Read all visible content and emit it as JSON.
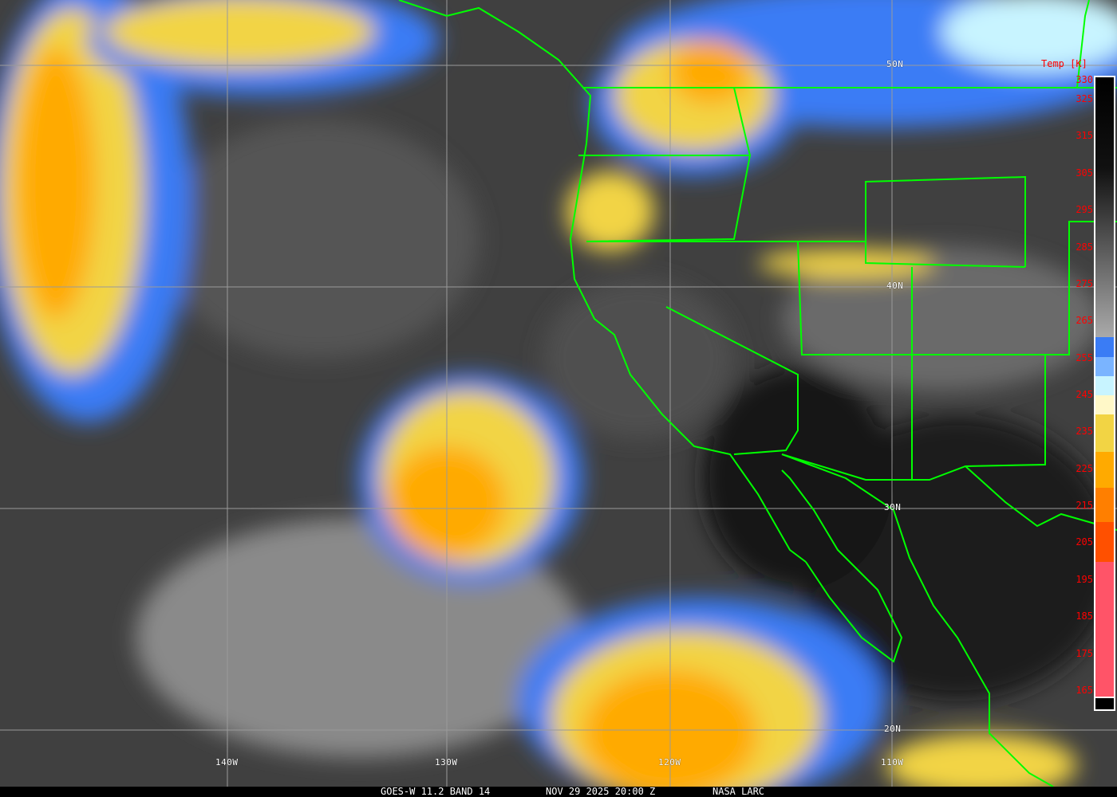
{
  "caption": {
    "satellite": "GOES-W 11.2 BAND 14",
    "datetime": "NOV 29 2025 20:00 Z",
    "source": "NASA LARC"
  },
  "grid": {
    "lat_labels": [
      "50N",
      "40N",
      "30N",
      "20N"
    ],
    "lon_labels": [
      "140W",
      "130W",
      "120W",
      "110W"
    ]
  },
  "colorbar": {
    "title": "Temp [K]",
    "ticks": [
      "330",
      "325",
      "315",
      "305",
      "295",
      "285",
      "275",
      "265",
      "255",
      "245",
      "235",
      "225",
      "215",
      "205",
      "195",
      "185",
      "175",
      "165"
    ],
    "colors": {
      "cold_blue": "#3a7cf5",
      "light_blue": "#7ab4ff",
      "cyan": "#c8f4ff",
      "cream": "#fff8c8",
      "yellow": "#f2d444",
      "orange": "#ffaa00",
      "dark_orange": "#ff7f00",
      "red_orange": "#ff5000",
      "pink": "#ff5468"
    }
  },
  "colors": {
    "boundaries": "#00ff00",
    "grid": "#9a9a9a",
    "tick_text": "#ff0000"
  }
}
